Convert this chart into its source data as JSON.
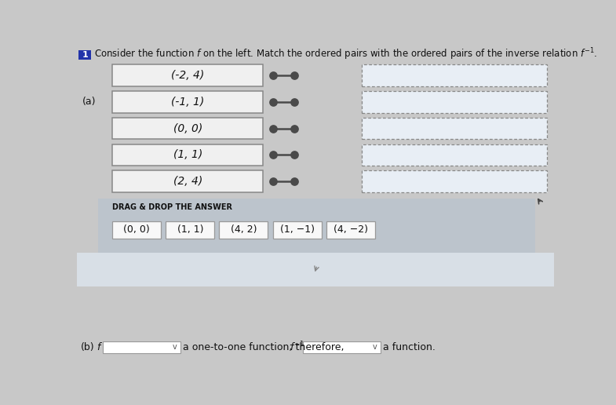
{
  "question_num": "1",
  "part_a_label": "(a)",
  "part_b_label": "(b)",
  "left_pairs": [
    "(-2, 4)",
    "(-1, 1)",
    "(0, 0)",
    "(1, 1)",
    "(2, 4)"
  ],
  "drag_drop_label": "DRAG & DROP THE ANSWER",
  "drag_answers": [
    "(0, 0)",
    "(1, 1)",
    "(4, 2)",
    "(1, −1)",
    "(4, −2)"
  ],
  "part_b_text1": "a one-to-one function; therefore, ",
  "part_b_text2": "a function.",
  "bg_color": "#c8c8c8",
  "main_bg": "#c8c8c8",
  "drag_section_bg": "#bfc5cc",
  "bottom_bg": "#dce3ea",
  "box_bg": "#f0f0f0",
  "box_border": "#888888",
  "dashed_box_bg": "#e8eef5",
  "dashed_border": "#888888",
  "dot_color": "#4a4a4a",
  "line_color": "#4a4a4a",
  "drag_box_bg": "#f8f8f8",
  "drag_box_border": "#999999",
  "dropdown_bg": "#ffffff",
  "dropdown_border": "#999999",
  "text_color": "#111111",
  "label_color": "#111111",
  "num_box_bg": "#2233aa",
  "num_box_text": "#ffffff",
  "title_fontsize": 8.5,
  "pair_fontsize": 10,
  "drag_fontsize": 9,
  "label_fontsize": 9,
  "b_fontsize": 9
}
